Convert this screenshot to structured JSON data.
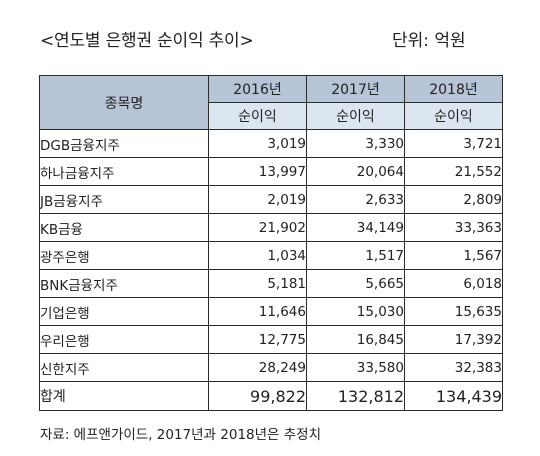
{
  "title": "<연도별 은행권 순이익 추이>",
  "unit": "단위: 억원",
  "table": {
    "name_header": "종목명",
    "years": [
      "2016년",
      "2017년",
      "2018년"
    ],
    "sub_header": "순이익",
    "rows": [
      {
        "name": "DGB금융지주",
        "values": [
          "3,019",
          "3,330",
          "3,721"
        ]
      },
      {
        "name": "하나금융지주",
        "values": [
          "13,997",
          "20,064",
          "21,552"
        ]
      },
      {
        "name": "JB금융지주",
        "values": [
          "2,019",
          "2,633",
          "2,809"
        ]
      },
      {
        "name": "KB금융",
        "values": [
          "21,902",
          "34,149",
          "33,363"
        ]
      },
      {
        "name": "광주은행",
        "values": [
          "1,034",
          "1,517",
          "1,567"
        ]
      },
      {
        "name": "BNK금융지주",
        "values": [
          "5,181",
          "5,665",
          "6,018"
        ]
      },
      {
        "name": "기업은행",
        "values": [
          "11,646",
          "15,030",
          "15,635"
        ]
      },
      {
        "name": "우리은행",
        "values": [
          "12,775",
          "16,845",
          "17,392"
        ]
      },
      {
        "name": "신한지주",
        "values": [
          "28,249",
          "33,580",
          "32,383"
        ]
      }
    ],
    "total": {
      "name": "합계",
      "values": [
        "99,822",
        "132,812",
        "134,439"
      ]
    }
  },
  "source": "자료: 에프앤가이드, 2017년과 2018년은 추정치"
}
